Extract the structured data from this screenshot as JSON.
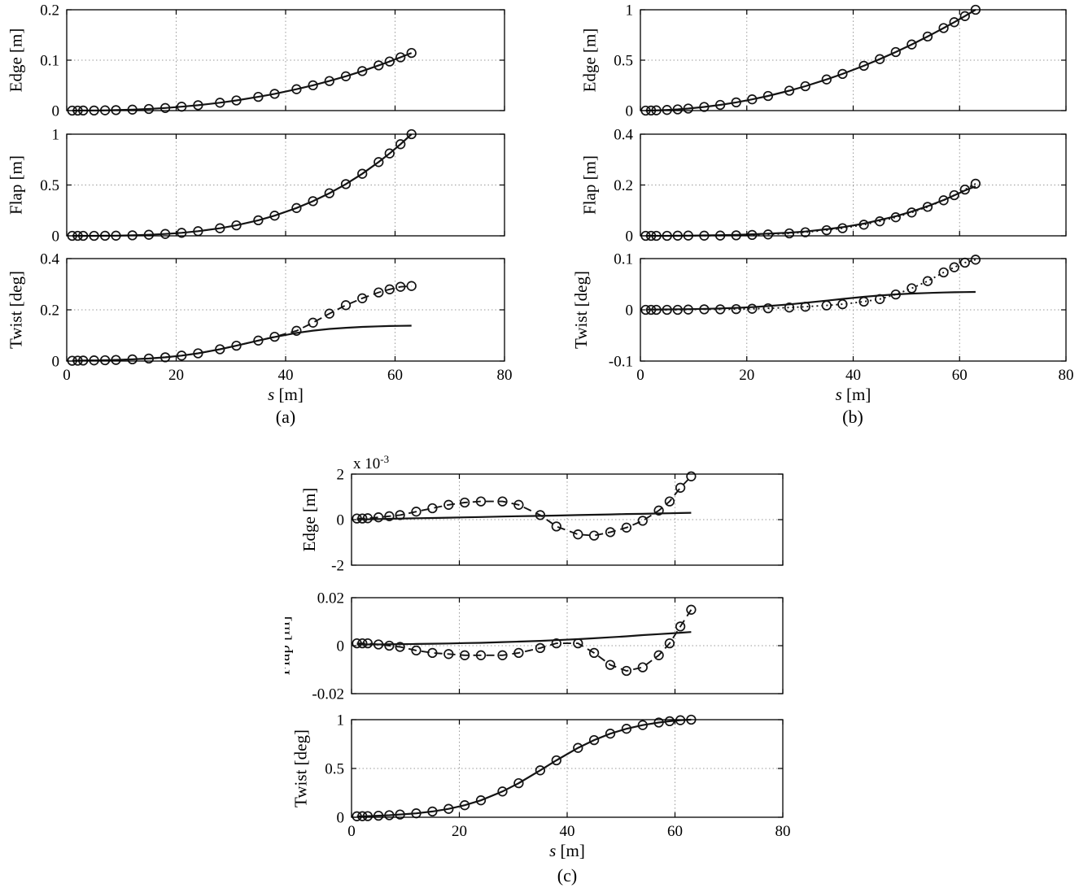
{
  "figure": {
    "background": "#ffffff",
    "line_color": "#141414",
    "grid_color": "#9a9a9a"
  },
  "chart_data": [
    {
      "id": "a",
      "caption": "(a)",
      "type": "line",
      "xlabel": "s [m]",
      "xlim": [
        0,
        80
      ],
      "xticks": [
        0,
        20,
        40,
        60,
        80
      ],
      "stations": [
        1,
        2,
        3,
        5,
        7,
        9,
        12,
        15,
        18,
        21,
        24,
        28,
        31,
        35,
        38,
        42,
        45,
        48,
        51,
        54,
        57,
        59,
        61,
        63
      ],
      "subplots": [
        {
          "key": "edge",
          "ylabel": "Edge [m]",
          "ylim": [
            0,
            0.2
          ],
          "yticks": [
            0,
            0.1,
            0.2
          ],
          "series": [
            {
              "name": "model-line",
              "style": "solid",
              "y": [
                0,
                0,
                0.0001,
                0.0002,
                0.0005,
                0.0009,
                0.0019,
                0.0033,
                0.0052,
                0.0077,
                0.0107,
                0.0157,
                0.0202,
                0.0272,
                0.0332,
                0.0424,
                0.0501,
                0.0587,
                0.0681,
                0.0784,
                0.0896,
                0.0975,
                0.1057,
                0.1143
              ]
            },
            {
              "name": "reference-markers",
              "style": "markers",
              "y": [
                0,
                0,
                0.0001,
                0.0002,
                0.0005,
                0.0009,
                0.0019,
                0.0033,
                0.0052,
                0.0077,
                0.0107,
                0.0157,
                0.0202,
                0.0272,
                0.0332,
                0.0424,
                0.0501,
                0.0587,
                0.0681,
                0.0784,
                0.0896,
                0.0975,
                0.1057,
                0.1143
              ]
            }
          ]
        },
        {
          "key": "flap",
          "ylabel": "Flap [m]",
          "ylim": [
            0,
            1
          ],
          "yticks": [
            0,
            0.5,
            1
          ],
          "series": [
            {
              "name": "model-line",
              "style": "solid",
              "y": [
                0,
                0,
                0.0001,
                0.0003,
                0.0009,
                0.002,
                0.0049,
                0.0101,
                0.0182,
                0.0297,
                0.0456,
                0.0746,
                0.1034,
                0.1524,
                0.1984,
                0.2732,
                0.3407,
                0.419,
                0.5086,
                0.6104,
                0.7259,
                0.8106,
                0.902,
                1.0
              ]
            },
            {
              "name": "reference-markers",
              "style": "markers",
              "y": [
                0,
                0,
                0.0001,
                0.0003,
                0.0009,
                0.002,
                0.0049,
                0.0101,
                0.0182,
                0.0297,
                0.0456,
                0.0746,
                0.1034,
                0.1524,
                0.1984,
                0.2732,
                0.3407,
                0.419,
                0.5086,
                0.6104,
                0.7259,
                0.8106,
                0.902,
                1.0
              ]
            }
          ]
        },
        {
          "key": "twist",
          "ylabel": "Twist [deg]",
          "ylim": [
            0,
            0.4
          ],
          "yticks": [
            0,
            0.2,
            0.4
          ],
          "series": [
            {
              "name": "model-line",
              "style": "solid",
              "y": [
                0.0014,
                0.0017,
                0.0019,
                0.0025,
                0.0033,
                0.0044,
                0.0066,
                0.0099,
                0.0147,
                0.0214,
                0.0303,
                0.046,
                0.0601,
                0.0799,
                0.094,
                0.1097,
                0.1186,
                0.1253,
                0.13,
                0.1334,
                0.1356,
                0.1367,
                0.1375,
                0.1381
              ]
            },
            {
              "name": "reference-markers",
              "style": "dashed-markers",
              "y": [
                0.0014,
                0.0017,
                0.0019,
                0.0025,
                0.0033,
                0.0044,
                0.0066,
                0.0099,
                0.0147,
                0.0214,
                0.0303,
                0.046,
                0.0601,
                0.0799,
                0.095,
                0.118,
                0.15,
                0.185,
                0.218,
                0.245,
                0.268,
                0.28,
                0.29,
                0.293
              ]
            }
          ]
        }
      ]
    },
    {
      "id": "b",
      "caption": "(b)",
      "type": "line",
      "xlabel": "s [m]",
      "xlim": [
        0,
        80
      ],
      "xticks": [
        0,
        20,
        40,
        60,
        80
      ],
      "stations": [
        1,
        2,
        3,
        5,
        7,
        9,
        12,
        15,
        18,
        21,
        24,
        28,
        31,
        35,
        38,
        42,
        45,
        48,
        51,
        54,
        57,
        59,
        61,
        63
      ],
      "subplots": [
        {
          "key": "edge",
          "ylabel": "Edge [m]",
          "ylim": [
            0,
            1
          ],
          "yticks": [
            0,
            0.5,
            1
          ],
          "series": [
            {
              "name": "model-line",
              "style": "solid",
              "y": [
                0.0003,
                0.001,
                0.0023,
                0.0063,
                0.0123,
                0.0204,
                0.0363,
                0.0567,
                0.0816,
                0.1111,
                0.1451,
                0.1975,
                0.2421,
                0.3086,
                0.3638,
                0.4444,
                0.5102,
                0.5805,
                0.6553,
                0.7347,
                0.8185,
                0.877,
                0.9374,
                1.0
              ]
            },
            {
              "name": "reference-markers",
              "style": "markers",
              "y": [
                0.0003,
                0.001,
                0.0023,
                0.0063,
                0.0123,
                0.0204,
                0.0363,
                0.0567,
                0.0816,
                0.1111,
                0.1451,
                0.1975,
                0.2421,
                0.3086,
                0.3638,
                0.4444,
                0.5102,
                0.5805,
                0.6553,
                0.7347,
                0.8185,
                0.877,
                0.9374,
                1.0
              ]
            }
          ]
        },
        {
          "key": "flap",
          "ylabel": "Flap [m]",
          "ylim": [
            0,
            0.4
          ],
          "yticks": [
            0,
            0.2,
            0.4
          ],
          "series": [
            {
              "name": "model-line",
              "style": "solid",
              "y": [
                0,
                0,
                0,
                0.0001,
                0.0003,
                0.0007,
                0.0015,
                0.0025,
                0.004,
                0.006,
                0.0085,
                0.0125,
                0.017,
                0.026,
                0.034,
                0.048,
                0.062,
                0.077,
                0.0955,
                0.1166,
                0.1409,
                0.159,
                0.1787,
                0.195
              ]
            },
            {
              "name": "reference-markers",
              "style": "dotted-markers",
              "y": [
                0,
                0,
                0,
                0,
                0.0005,
                0.001,
                0.0005,
                0.001,
                0.002,
                0.0035,
                0.0055,
                0.0095,
                0.014,
                0.022,
                0.03,
                0.044,
                0.057,
                0.073,
                0.092,
                0.114,
                0.14,
                0.16,
                0.182,
                0.205
              ]
            }
          ]
        },
        {
          "key": "twist",
          "ylabel": "Twist [deg]",
          "ylim": [
            -0.1,
            0.1
          ],
          "yticks": [
            -0.1,
            0,
            0.1
          ],
          "series": [
            {
              "name": "model-line",
              "style": "solid",
              "y": [
                0.0005,
                0.0006,
                0.0006,
                0.0008,
                0.0011,
                0.0013,
                0.0019,
                0.0027,
                0.0038,
                0.0053,
                0.0073,
                0.0106,
                0.0136,
                0.018,
                0.0213,
                0.0254,
                0.028,
                0.0301,
                0.0317,
                0.0329,
                0.0338,
                0.0343,
                0.0346,
                0.0349
              ]
            },
            {
              "name": "reference-markers",
              "style": "dotted-markers",
              "y": [
                0,
                0,
                0,
                0,
                0,
                0.0005,
                0.001,
                0.001,
                0.0015,
                0.002,
                0.003,
                0.0045,
                0.006,
                0.0085,
                0.011,
                0.016,
                0.021,
                0.03,
                0.042,
                0.056,
                0.073,
                0.083,
                0.092,
                0.098
              ]
            }
          ]
        }
      ]
    },
    {
      "id": "c",
      "caption": "(c)",
      "type": "line",
      "xlabel": "s [m]",
      "xlim": [
        0,
        80
      ],
      "xticks": [
        0,
        20,
        40,
        60,
        80
      ],
      "stations": [
        1,
        2,
        3,
        5,
        7,
        9,
        12,
        15,
        18,
        21,
        24,
        28,
        31,
        35,
        38,
        42,
        45,
        48,
        51,
        54,
        57,
        59,
        61,
        63
      ],
      "subplots": [
        {
          "key": "edge",
          "ylabel": "Edge [m]",
          "ylim": [
            -2,
            2
          ],
          "yticks": [
            -2,
            0,
            2
          ],
          "y_exponent": -3,
          "series": [
            {
              "name": "model-line",
              "style": "solid",
              "y": [
                0.005,
                0.01,
                0.015,
                0.025,
                0.035,
                0.045,
                0.06,
                0.07,
                0.085,
                0.1,
                0.115,
                0.135,
                0.15,
                0.165,
                0.18,
                0.2,
                0.215,
                0.23,
                0.245,
                0.255,
                0.27,
                0.28,
                0.29,
                0.3
              ]
            },
            {
              "name": "reference-markers",
              "style": "dashed-markers",
              "y": [
                0.05,
                0.05,
                0.06,
                0.1,
                0.15,
                0.2,
                0.35,
                0.5,
                0.65,
                0.75,
                0.8,
                0.8,
                0.65,
                0.2,
                -0.3,
                -0.65,
                -0.7,
                -0.55,
                -0.35,
                -0.05,
                0.4,
                0.8,
                1.4,
                1.9
              ]
            }
          ]
        },
        {
          "key": "flap",
          "ylabel": "Flap [m]",
          "ylim": [
            -0.02,
            0.02
          ],
          "yticks": [
            -0.02,
            0,
            0.02
          ],
          "series": [
            {
              "name": "model-line",
              "style": "solid",
              "y": [
                0.0005,
                0.0005,
                0.0005,
                0.0005,
                0.0006,
                0.0006,
                0.0007,
                0.0008,
                0.0009,
                0.0011,
                0.0012,
                0.0015,
                0.0017,
                0.002,
                0.0023,
                0.0027,
                0.0031,
                0.0035,
                0.0039,
                0.0044,
                0.0048,
                0.0051,
                0.0054,
                0.0057
              ]
            },
            {
              "name": "reference-markers",
              "style": "dashed-markers",
              "y": [
                0.001,
                0.001,
                0.001,
                0.0005,
                0,
                -0.0005,
                -0.002,
                -0.003,
                -0.0035,
                -0.004,
                -0.004,
                -0.004,
                -0.003,
                -0.001,
                0.001,
                0.001,
                -0.003,
                -0.008,
                -0.0105,
                -0.009,
                -0.004,
                0.001,
                0.008,
                0.015
              ]
            }
          ]
        },
        {
          "key": "twist",
          "ylabel": "Twist [deg]",
          "ylim": [
            0,
            1
          ],
          "yticks": [
            0,
            0.5,
            1
          ],
          "series": [
            {
              "name": "model-line",
              "style": "solid",
              "y": [
                0.01,
                0.011,
                0.012,
                0.016,
                0.021,
                0.028,
                0.04,
                0.059,
                0.086,
                0.123,
                0.173,
                0.264,
                0.349,
                0.481,
                0.583,
                0.711,
                0.791,
                0.857,
                0.907,
                0.944,
                0.971,
                0.984,
                0.994,
                1.0
              ]
            },
            {
              "name": "reference-markers",
              "style": "markers",
              "y": [
                0.01,
                0.011,
                0.012,
                0.016,
                0.021,
                0.028,
                0.04,
                0.059,
                0.086,
                0.123,
                0.173,
                0.264,
                0.349,
                0.481,
                0.583,
                0.711,
                0.791,
                0.857,
                0.907,
                0.944,
                0.971,
                0.984,
                0.994,
                1.0
              ]
            }
          ]
        }
      ]
    }
  ]
}
